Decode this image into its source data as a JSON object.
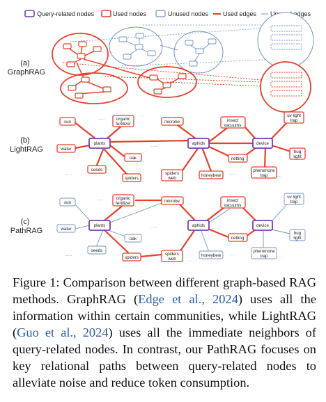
{
  "legend": {
    "query_nodes": "Query-related nodes",
    "used_nodes": "Used nodes",
    "unused_nodes": "Unused nodes",
    "used_edges": "Used edges",
    "unused_edges": "Unused edges"
  },
  "rows": {
    "graphrag": {
      "letter": "(a)",
      "name": "GraphRAG"
    },
    "lightrag": {
      "letter": "(b)",
      "name": "LightRAG"
    },
    "pathrag": {
      "letter": "(c)",
      "name": "PathRAG"
    }
  },
  "nodes": {
    "sun": "sun",
    "organic1": "organic",
    "organic2": "fertilizer",
    "microbe": "microbe",
    "insect1": "insect",
    "insect2": "vacuums",
    "uv1": "uv light",
    "uv2": "trap",
    "water": "water",
    "plants": "plants",
    "aphids": "aphids",
    "device": "device",
    "oak": "oak",
    "netting": "netting",
    "bug1": "bug",
    "bug2": "light",
    "seeds": "seeds",
    "spiders": "spiders",
    "sweb1": "spiders",
    "sweb2": "web",
    "honeybew": "honeybew",
    "pher1": "pheromone",
    "pher2": "trap",
    "dots": "......"
  },
  "caption": {
    "part1": "Figure 1: Comparison between different graph-based RAG methods. GraphRAG (",
    "cite1": "Edge et al., 2024",
    "part2": ") uses all the information within certain communities, while LightRAG (",
    "cite2": "Guo et al., 2024",
    "part3": ") uses all the immediate neighbors of query-related nodes. In contrast, our PathRAG focuses on key relational paths between query-related nodes to alleviate noise and reduce token consumption."
  },
  "colors": {
    "used": "#e8402a",
    "unused": "#6f93c9",
    "query": "#7a3eb1"
  }
}
